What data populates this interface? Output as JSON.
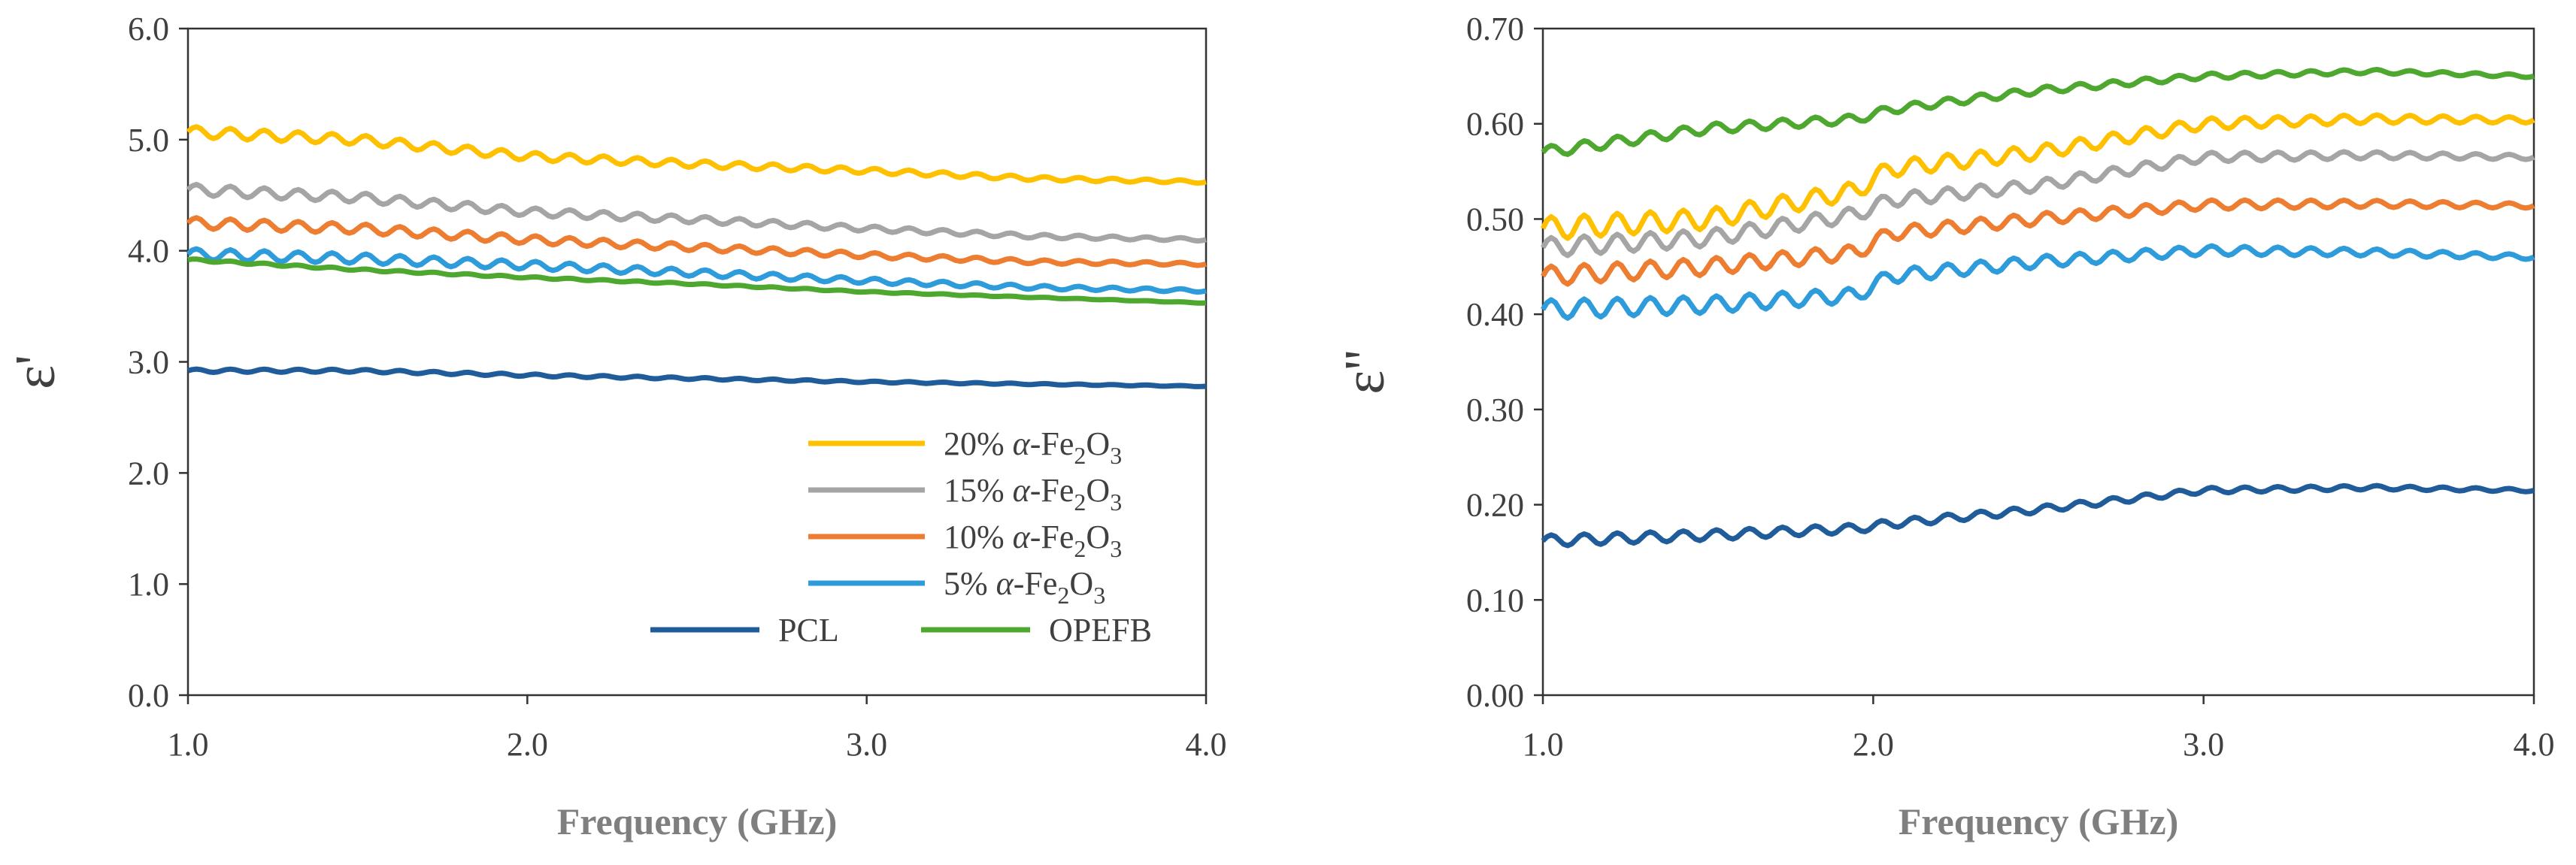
{
  "chart_data": [
    {
      "type": "line",
      "xlabel": "Frequency (GHz)",
      "ylabel": "ε'",
      "xlim": [
        1.0,
        4.0
      ],
      "ylim": [
        0.0,
        6.0
      ],
      "xticks": [
        "1.0",
        "2.0",
        "3.0",
        "4.0"
      ],
      "yticks": [
        "0.0",
        "1.0",
        "2.0",
        "3.0",
        "4.0",
        "5.0",
        "6.0"
      ],
      "grid": false,
      "legend_position": "bottom-right",
      "legend": [
        {
          "pre": "20% ",
          "greek": "α",
          "mid": "-Fe",
          "sub1": "2",
          "o": "O",
          "sub2": "3",
          "color": "#FFC000"
        },
        {
          "pre": "15% ",
          "greek": "α",
          "mid": "-Fe",
          "sub1": "2",
          "o": "O",
          "sub2": "3",
          "color": "#A5A5A5"
        },
        {
          "pre": "10% ",
          "greek": "α",
          "mid": "-Fe",
          "sub1": "2",
          "o": "O",
          "sub2": "3",
          "color": "#ED7D31"
        },
        {
          "pre": "5% ",
          "greek": "α",
          "mid": "-Fe",
          "sub1": "2",
          "o": "O",
          "sub2": "3",
          "color": "#2E9BDB"
        },
        {
          "text": "PCL",
          "color": "#1F5C99"
        },
        {
          "text": "OPEFB",
          "color": "#4EA72E"
        }
      ],
      "x": [
        1.0,
        1.5,
        2.0,
        2.5,
        3.0,
        3.5,
        4.0
      ],
      "series": [
        {
          "name": "20% α-Fe2O3",
          "color": "#FFC000",
          "values": [
            5.07,
            5.0,
            4.85,
            4.78,
            4.72,
            4.65,
            4.62
          ],
          "wobble": 0.05,
          "wobble_freq": 10
        },
        {
          "name": "15% α-Fe2O3",
          "color": "#A5A5A5",
          "values": [
            4.55,
            4.48,
            4.35,
            4.28,
            4.2,
            4.13,
            4.1
          ],
          "wobble": 0.05,
          "wobble_freq": 10
        },
        {
          "name": "10% α-Fe2O3",
          "color": "#ED7D31",
          "values": [
            4.25,
            4.2,
            4.1,
            4.03,
            3.96,
            3.9,
            3.88
          ],
          "wobble": 0.05,
          "wobble_freq": 10
        },
        {
          "name": "5% α-Fe2O3",
          "color": "#2E9BDB",
          "values": [
            3.97,
            3.93,
            3.87,
            3.8,
            3.73,
            3.67,
            3.64
          ],
          "wobble": 0.05,
          "wobble_freq": 10
        },
        {
          "name": "PCL",
          "color": "#1F5C99",
          "values": [
            2.92,
            2.92,
            2.88,
            2.85,
            2.82,
            2.8,
            2.78
          ],
          "wobble": 0.015,
          "wobble_freq": 10
        },
        {
          "name": "OPEFB",
          "color": "#4EA72E",
          "values": [
            3.92,
            3.83,
            3.76,
            3.7,
            3.63,
            3.58,
            3.53
          ],
          "wobble": 0.01,
          "wobble_freq": 10
        }
      ]
    },
    {
      "type": "line",
      "xlabel": "Frequency (GHz)",
      "ylabel": "ε''",
      "xlim": [
        1.0,
        4.0
      ],
      "ylim": [
        0.0,
        0.7
      ],
      "xticks": [
        "1.0",
        "2.0",
        "3.0",
        "4.0"
      ],
      "yticks": [
        "0.00",
        "0.10",
        "0.20",
        "0.30",
        "0.40",
        "0.50",
        "0.60",
        "0.70"
      ],
      "grid": false,
      "x": [
        1.0,
        1.5,
        1.95,
        2.05,
        2.5,
        3.0,
        3.5,
        4.0
      ],
      "series": [
        {
          "name": "20% α-Fe2O3",
          "color": "#FFC000",
          "values": [
            0.49,
            0.5,
            0.53,
            0.553,
            0.57,
            0.6,
            0.605,
            0.604
          ],
          "wobble": 0.012,
          "wobble_freq": 10
        },
        {
          "name": "15% α-Fe2O3",
          "color": "#A5A5A5",
          "values": [
            0.47,
            0.48,
            0.505,
            0.52,
            0.535,
            0.565,
            0.567,
            0.565
          ],
          "wobble": 0.01,
          "wobble_freq": 10
        },
        {
          "name": "10% α-Fe2O3",
          "color": "#ED7D31",
          "values": [
            0.44,
            0.45,
            0.465,
            0.485,
            0.5,
            0.515,
            0.516,
            0.514
          ],
          "wobble": 0.01,
          "wobble_freq": 10
        },
        {
          "name": "5% α-Fe2O3",
          "color": "#2E9BDB",
          "values": [
            0.405,
            0.41,
            0.42,
            0.44,
            0.455,
            0.467,
            0.465,
            0.46
          ],
          "wobble": 0.01,
          "wobble_freq": 10
        },
        {
          "name": "PCL",
          "color": "#1F5C99",
          "values": [
            0.162,
            0.168,
            0.175,
            0.18,
            0.195,
            0.215,
            0.218,
            0.215
          ],
          "wobble": 0.006,
          "wobble_freq": 10
        },
        {
          "name": "OPEFB",
          "color": "#4EA72E",
          "values": [
            0.57,
            0.595,
            0.605,
            0.615,
            0.635,
            0.65,
            0.655,
            0.65
          ],
          "wobble": 0.006,
          "wobble_freq": 10
        }
      ]
    }
  ]
}
